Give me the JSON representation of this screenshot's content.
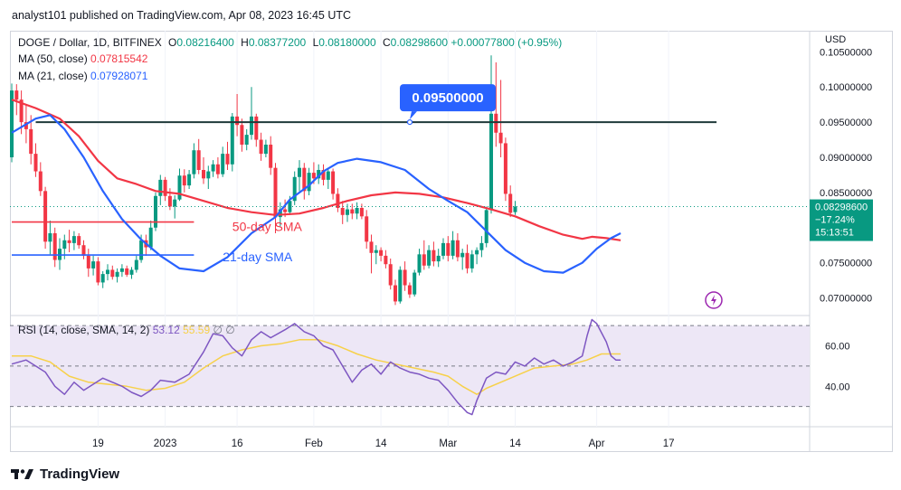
{
  "header": {
    "publisher": "analyst101 published on TradingView.com, Apr 08, 2023 16:45 UTC"
  },
  "legend": {
    "symbol": "DOGE / Dollar, 1D, BITFINEX",
    "open_key": "O",
    "open": "0.08216400",
    "high_key": "H",
    "high": "0.08377200",
    "low_key": "L",
    "low": "0.08180000",
    "close_key": "C",
    "close": "0.08298600",
    "change": "+0.00077800 (+0.95%)",
    "ma50_label": "MA (50, close)",
    "ma50_value": "0.07815542",
    "ma21_label": "MA (21, close)",
    "ma21_value": "0.07928071"
  },
  "rsi_legend": {
    "label": "RSI (14, close, SMA, 14, 2)",
    "value": "53.12",
    "sma_value": "55.59",
    "hidden_icons": "∅  ∅"
  },
  "footer": {
    "brand": "TradingView",
    "logo_icon": "tradingview-logo-icon"
  },
  "colors": {
    "bull": "#089981",
    "bear": "#f23645",
    "ma50": "#f23645",
    "ma21": "#2962ff",
    "resistance": "#1f3a3a",
    "rsi_line": "#7e57c2",
    "rsi_sma": "#f7d14a",
    "rsi_band": "#ede7f6",
    "callout": "#2962ff",
    "price_tag": "#089981"
  },
  "chart_data": {
    "type": "candlestick",
    "price_axis": {
      "currency": "USD",
      "ticks": [
        "0.10500000",
        "0.10000000",
        "0.09500000",
        "0.09000000",
        "0.08500000",
        "0.07500000",
        "0.07000000"
      ],
      "range": [
        0.0675,
        0.108
      ]
    },
    "time_axis": {
      "labels": [
        "19",
        "2023",
        "16",
        "Feb",
        "14",
        "Mar",
        "14",
        "Apr",
        "17"
      ],
      "label_days": [
        18,
        32,
        47,
        63,
        77,
        91,
        105,
        122,
        137
      ]
    },
    "candles_ohlc": [
      [
        0.09,
        0.1005,
        0.0893,
        0.0995
      ],
      [
        0.0995,
        0.1004,
        0.096,
        0.0982
      ],
      [
        0.0982,
        0.0995,
        0.0933,
        0.095
      ],
      [
        0.095,
        0.0974,
        0.092,
        0.094
      ],
      [
        0.094,
        0.096,
        0.089,
        0.0905
      ],
      [
        0.0905,
        0.092,
        0.0872,
        0.088
      ],
      [
        0.088,
        0.0893,
        0.0845,
        0.0852
      ],
      [
        0.0852,
        0.0858,
        0.077,
        0.078
      ],
      [
        0.078,
        0.081,
        0.0762,
        0.0792
      ],
      [
        0.0792,
        0.08,
        0.0744,
        0.0754
      ],
      [
        0.0754,
        0.0785,
        0.074,
        0.077
      ],
      [
        0.077,
        0.079,
        0.0755,
        0.0782
      ],
      [
        0.0782,
        0.0797,
        0.0765,
        0.0778
      ],
      [
        0.0778,
        0.0795,
        0.0768,
        0.0788
      ],
      [
        0.0788,
        0.0792,
        0.077,
        0.0775
      ],
      [
        0.0775,
        0.0782,
        0.0755,
        0.076
      ],
      [
        0.076,
        0.077,
        0.073,
        0.0742
      ],
      [
        0.0742,
        0.076,
        0.0732,
        0.0752
      ],
      [
        0.0752,
        0.0758,
        0.0718,
        0.0722
      ],
      [
        0.0722,
        0.0738,
        0.0714,
        0.0734
      ],
      [
        0.0734,
        0.0748,
        0.0725,
        0.074
      ],
      [
        0.074,
        0.0746,
        0.0726,
        0.073
      ],
      [
        0.073,
        0.0742,
        0.0722,
        0.0737
      ],
      [
        0.0737,
        0.0748,
        0.073,
        0.0742
      ],
      [
        0.0742,
        0.0746,
        0.073,
        0.0733
      ],
      [
        0.0733,
        0.0744,
        0.0727,
        0.074
      ],
      [
        0.074,
        0.076,
        0.0736,
        0.0754
      ],
      [
        0.0754,
        0.079,
        0.075,
        0.0782
      ],
      [
        0.0782,
        0.079,
        0.076,
        0.0772
      ],
      [
        0.0772,
        0.081,
        0.0768,
        0.08
      ],
      [
        0.08,
        0.085,
        0.0795,
        0.0845
      ],
      [
        0.0845,
        0.0875,
        0.0832,
        0.0868
      ],
      [
        0.0868,
        0.0872,
        0.0838,
        0.0845
      ],
      [
        0.0845,
        0.0856,
        0.0825,
        0.083
      ],
      [
        0.083,
        0.0846,
        0.0813,
        0.084
      ],
      [
        0.084,
        0.0884,
        0.0838,
        0.0874
      ],
      [
        0.0874,
        0.0883,
        0.085,
        0.086
      ],
      [
        0.086,
        0.0882,
        0.0855,
        0.0876
      ],
      [
        0.0876,
        0.092,
        0.087,
        0.091
      ],
      [
        0.091,
        0.0926,
        0.0876,
        0.0882
      ],
      [
        0.0882,
        0.09,
        0.0862,
        0.087
      ],
      [
        0.087,
        0.0888,
        0.0855,
        0.088
      ],
      [
        0.088,
        0.0896,
        0.0872,
        0.089
      ],
      [
        0.089,
        0.09,
        0.087,
        0.0876
      ],
      [
        0.0876,
        0.0915,
        0.0872,
        0.0905
      ],
      [
        0.0905,
        0.0922,
        0.0882,
        0.089
      ],
      [
        0.089,
        0.0963,
        0.088,
        0.0958
      ],
      [
        0.0958,
        0.099,
        0.093,
        0.0946
      ],
      [
        0.0946,
        0.0955,
        0.0908,
        0.0918
      ],
      [
        0.0918,
        0.094,
        0.091,
        0.0932
      ],
      [
        0.0932,
        0.1,
        0.0925,
        0.0958
      ],
      [
        0.0958,
        0.0962,
        0.0915,
        0.0925
      ],
      [
        0.0925,
        0.0935,
        0.0895,
        0.0905
      ],
      [
        0.0905,
        0.0925,
        0.09,
        0.0918
      ],
      [
        0.0918,
        0.093,
        0.0875,
        0.0885
      ],
      [
        0.0885,
        0.0892,
        0.0792,
        0.0815
      ],
      [
        0.0815,
        0.0836,
        0.0802,
        0.0826
      ],
      [
        0.0826,
        0.084,
        0.0815,
        0.0822
      ],
      [
        0.0822,
        0.0845,
        0.0818,
        0.0838
      ],
      [
        0.0838,
        0.088,
        0.0832,
        0.0872
      ],
      [
        0.0872,
        0.0896,
        0.0852,
        0.0885
      ],
      [
        0.0885,
        0.0892,
        0.084,
        0.0852
      ],
      [
        0.0852,
        0.0885,
        0.0846,
        0.0878
      ],
      [
        0.0878,
        0.0893,
        0.0862,
        0.087
      ],
      [
        0.087,
        0.089,
        0.0862,
        0.0882
      ],
      [
        0.0882,
        0.089,
        0.086,
        0.0868
      ],
      [
        0.0868,
        0.0885,
        0.0855,
        0.088
      ],
      [
        0.088,
        0.0884,
        0.084,
        0.0848
      ],
      [
        0.0848,
        0.0856,
        0.0822,
        0.0828
      ],
      [
        0.0828,
        0.0838,
        0.0805,
        0.0818
      ],
      [
        0.0818,
        0.0834,
        0.0808,
        0.0826
      ],
      [
        0.0826,
        0.0834,
        0.0812,
        0.082
      ],
      [
        0.082,
        0.0836,
        0.0812,
        0.0828
      ],
      [
        0.0828,
        0.0834,
        0.0812,
        0.0816
      ],
      [
        0.0816,
        0.0825,
        0.077,
        0.078
      ],
      [
        0.078,
        0.079,
        0.0735,
        0.0764
      ],
      [
        0.0764,
        0.0775,
        0.0748,
        0.0768
      ],
      [
        0.0768,
        0.0772,
        0.0752,
        0.076
      ],
      [
        0.076,
        0.0768,
        0.0742,
        0.0748
      ],
      [
        0.0748,
        0.0756,
        0.0712,
        0.0718
      ],
      [
        0.0718,
        0.0726,
        0.069,
        0.0695
      ],
      [
        0.0695,
        0.0745,
        0.0692,
        0.074
      ],
      [
        0.074,
        0.0752,
        0.071,
        0.0718
      ],
      [
        0.0718,
        0.0722,
        0.07,
        0.0705
      ],
      [
        0.0705,
        0.074,
        0.0702,
        0.0736
      ],
      [
        0.0736,
        0.077,
        0.0732,
        0.0762
      ],
      [
        0.0762,
        0.0782,
        0.074,
        0.0746
      ],
      [
        0.0746,
        0.0775,
        0.0742,
        0.0768
      ],
      [
        0.0768,
        0.078,
        0.0745,
        0.0752
      ],
      [
        0.0752,
        0.077,
        0.0744,
        0.076
      ],
      [
        0.076,
        0.0785,
        0.0755,
        0.0778
      ],
      [
        0.0778,
        0.0788,
        0.0752,
        0.076
      ],
      [
        0.076,
        0.0795,
        0.0755,
        0.0782
      ],
      [
        0.0782,
        0.0792,
        0.0752,
        0.0758
      ],
      [
        0.0758,
        0.077,
        0.074,
        0.0764
      ],
      [
        0.0764,
        0.0776,
        0.0735,
        0.0742
      ],
      [
        0.0742,
        0.0768,
        0.0736,
        0.0762
      ],
      [
        0.0762,
        0.0772,
        0.0748,
        0.0768
      ],
      [
        0.0768,
        0.0788,
        0.0758,
        0.0778
      ],
      [
        0.0778,
        0.083,
        0.0772,
        0.0825
      ],
      [
        0.0825,
        0.1045,
        0.082,
        0.0962
      ],
      [
        0.0962,
        0.1035,
        0.0915,
        0.0935
      ],
      [
        0.0935,
        0.101,
        0.09,
        0.092
      ],
      [
        0.092,
        0.0928,
        0.0838,
        0.0848
      ],
      [
        0.0848,
        0.086,
        0.0815,
        0.0821
      ],
      [
        0.0822,
        0.0838,
        0.0818,
        0.083
      ]
    ],
    "sma50": [
      [
        0,
        0.0982
      ],
      [
        5,
        0.097
      ],
      [
        10,
        0.0955
      ],
      [
        14,
        0.093
      ],
      [
        18,
        0.0895
      ],
      [
        22,
        0.087
      ],
      [
        26,
        0.0862
      ],
      [
        30,
        0.0852
      ],
      [
        35,
        0.0848
      ],
      [
        40,
        0.0838
      ],
      [
        45,
        0.0828
      ],
      [
        50,
        0.0822
      ],
      [
        55,
        0.0818
      ],
      [
        60,
        0.082
      ],
      [
        65,
        0.0828
      ],
      [
        70,
        0.0838
      ],
      [
        75,
        0.0846
      ],
      [
        80,
        0.085
      ],
      [
        85,
        0.0848
      ],
      [
        90,
        0.0843
      ],
      [
        95,
        0.0835
      ],
      [
        100,
        0.0826
      ],
      [
        105,
        0.0816
      ],
      [
        110,
        0.0802
      ],
      [
        115,
        0.079
      ],
      [
        119,
        0.0784
      ],
      [
        121,
        0.0787
      ],
      [
        124,
        0.0785
      ],
      [
        127,
        0.0782
      ]
    ],
    "sma21": [
      [
        0,
        0.0935
      ],
      [
        5,
        0.0955
      ],
      [
        8,
        0.096
      ],
      [
        11,
        0.094
      ],
      [
        15,
        0.09
      ],
      [
        19,
        0.0852
      ],
      [
        23,
        0.0812
      ],
      [
        27,
        0.0783
      ],
      [
        31,
        0.076
      ],
      [
        35,
        0.0742
      ],
      [
        40,
        0.0738
      ],
      [
        45,
        0.0758
      ],
      [
        50,
        0.0792
      ],
      [
        55,
        0.0815
      ],
      [
        58,
        0.084
      ],
      [
        62,
        0.086
      ],
      [
        65,
        0.088
      ],
      [
        68,
        0.0892
      ],
      [
        72,
        0.0898
      ],
      [
        77,
        0.0893
      ],
      [
        82,
        0.0882
      ],
      [
        87,
        0.0855
      ],
      [
        91,
        0.0838
      ],
      [
        95,
        0.0822
      ],
      [
        99,
        0.0795
      ],
      [
        103,
        0.0768
      ],
      [
        107,
        0.075
      ],
      [
        111,
        0.0738
      ],
      [
        115,
        0.0736
      ],
      [
        119,
        0.075
      ],
      [
        122,
        0.077
      ],
      [
        125,
        0.0785
      ],
      [
        127,
        0.0792
      ]
    ],
    "horizontal_lines": [
      {
        "kind": "resistance",
        "value": 0.095,
        "from_day": 5,
        "to_day": 147
      },
      {
        "kind": "red-level",
        "value": 0.0808,
        "from_day": 0,
        "to_day": 38
      },
      {
        "kind": "blue-level",
        "value": 0.0761,
        "from_day": 0,
        "to_day": 38
      }
    ],
    "resistance_callout": {
      "text": "0.09500000",
      "at_day": 80
    },
    "annotations": [
      {
        "text": "50-day SMA",
        "color": "#f23645",
        "day": 46,
        "value": 0.0795
      },
      {
        "text": "21-day SMA",
        "color": "#2962ff",
        "day": 44,
        "value": 0.0752
      }
    ],
    "current_price": {
      "value": 0.082986,
      "lines": [
        "0.08298600",
        "−17.24%",
        "15:13:51"
      ]
    },
    "rsi": {
      "label": "RSI (14, close, SMA, 14, 2)",
      "ticks": [
        "60.00",
        "40.00"
      ],
      "band": [
        70,
        30
      ],
      "mid": 50,
      "range": [
        20,
        75
      ],
      "rsi_points": [
        [
          0,
          51
        ],
        [
          3,
          53
        ],
        [
          5,
          50
        ],
        [
          7,
          47
        ],
        [
          9,
          40
        ],
        [
          11,
          36
        ],
        [
          13,
          42
        ],
        [
          15,
          38
        ],
        [
          17,
          41
        ],
        [
          19,
          44
        ],
        [
          21,
          42
        ],
        [
          23,
          40
        ],
        [
          25,
          37
        ],
        [
          27,
          35
        ],
        [
          29,
          38
        ],
        [
          31,
          43
        ],
        [
          34,
          42
        ],
        [
          37,
          46
        ],
        [
          40,
          57
        ],
        [
          42,
          66
        ],
        [
          44,
          65
        ],
        [
          46,
          59
        ],
        [
          48,
          55
        ],
        [
          50,
          63
        ],
        [
          52,
          67
        ],
        [
          54,
          64
        ],
        [
          57,
          68
        ],
        [
          59,
          71
        ],
        [
          61,
          67
        ],
        [
          63,
          65
        ],
        [
          65,
          60
        ],
        [
          67,
          58
        ],
        [
          69,
          50
        ],
        [
          71,
          42
        ],
        [
          73,
          48
        ],
        [
          75,
          51
        ],
        [
          77,
          46
        ],
        [
          79,
          52
        ],
        [
          81,
          49
        ],
        [
          83,
          47
        ],
        [
          85,
          46
        ],
        [
          87,
          44
        ],
        [
          89,
          43
        ],
        [
          91,
          38
        ],
        [
          93,
          32
        ],
        [
          95,
          27
        ],
        [
          96,
          26
        ],
        [
          97,
          33
        ],
        [
          99,
          44
        ],
        [
          101,
          47
        ],
        [
          103,
          46
        ],
        [
          105,
          52
        ],
        [
          107,
          50
        ],
        [
          109,
          54
        ],
        [
          111,
          51
        ],
        [
          113,
          53
        ],
        [
          115,
          50
        ],
        [
          117,
          52
        ],
        [
          119,
          55
        ],
        [
          120,
          65
        ],
        [
          121,
          73
        ],
        [
          122,
          71
        ],
        [
          124,
          62
        ],
        [
          125,
          55
        ],
        [
          126,
          53
        ],
        [
          127,
          53
        ]
      ],
      "sma_points": [
        [
          0,
          55
        ],
        [
          4,
          55
        ],
        [
          8,
          52
        ],
        [
          12,
          45
        ],
        [
          16,
          42
        ],
        [
          20,
          41
        ],
        [
          24,
          40
        ],
        [
          28,
          38
        ],
        [
          32,
          39
        ],
        [
          36,
          42
        ],
        [
          40,
          49
        ],
        [
          44,
          55
        ],
        [
          48,
          58
        ],
        [
          52,
          60
        ],
        [
          56,
          61
        ],
        [
          60,
          63
        ],
        [
          64,
          63
        ],
        [
          68,
          60
        ],
        [
          72,
          56
        ],
        [
          76,
          53
        ],
        [
          80,
          51
        ],
        [
          84,
          49
        ],
        [
          88,
          47
        ],
        [
          91,
          45
        ],
        [
          94,
          40
        ],
        [
          97,
          36
        ],
        [
          99,
          39
        ],
        [
          102,
          42
        ],
        [
          105,
          45
        ],
        [
          109,
          49
        ],
        [
          113,
          50
        ],
        [
          117,
          51
        ],
        [
          120,
          53
        ],
        [
          123,
          56
        ],
        [
          126,
          56
        ],
        [
          127,
          56
        ]
      ]
    }
  }
}
